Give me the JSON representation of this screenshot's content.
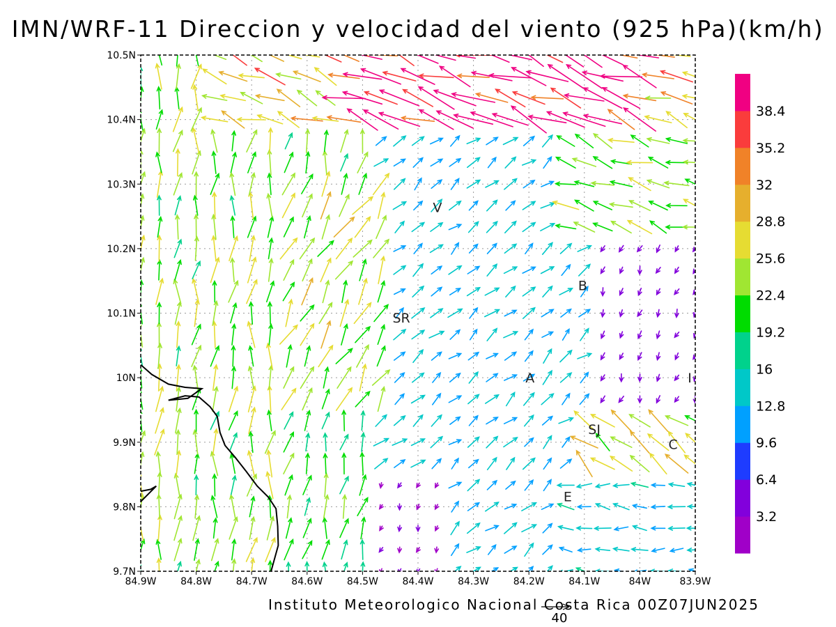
{
  "title": "IMN/WRF-11 Direccion y velocidad del viento (925 hPa)(km/h)",
  "footer": "Instituto Meteorologico Nacional Costa Rica 00Z07JUN2025",
  "reference_vector_label": "40",
  "map": {
    "lon_range": [
      -84.9,
      -83.9
    ],
    "lat_range": [
      9.7,
      10.5
    ],
    "lon_ticks": [
      {
        "value": -84.9,
        "label": "84.9W"
      },
      {
        "value": -84.8,
        "label": "84.8W"
      },
      {
        "value": -84.7,
        "label": "84.7W"
      },
      {
        "value": -84.6,
        "label": "84.6W"
      },
      {
        "value": -84.5,
        "label": "84.5W"
      },
      {
        "value": -84.4,
        "label": "84.4W"
      },
      {
        "value": -84.3,
        "label": "84.3W"
      },
      {
        "value": -84.2,
        "label": "84.2W"
      },
      {
        "value": -84.1,
        "label": "84.1W"
      },
      {
        "value": -84.0,
        "label": "84W"
      },
      {
        "value": -83.9,
        "label": "83.9W"
      }
    ],
    "lat_ticks": [
      {
        "value": 9.7,
        "label": "9.7N"
      },
      {
        "value": 9.8,
        "label": "9.8N"
      },
      {
        "value": 9.9,
        "label": "9.9N"
      },
      {
        "value": 10.0,
        "label": "10N"
      },
      {
        "value": 10.1,
        "label": "10.1N"
      },
      {
        "value": 10.2,
        "label": "10.2N"
      },
      {
        "value": 10.3,
        "label": "10.3N"
      },
      {
        "value": 10.4,
        "label": "10.4N"
      },
      {
        "value": 10.5,
        "label": "10.5N"
      }
    ],
    "grid": true,
    "coastline": [
      [
        [
          -84.9,
          10.02
        ],
        [
          -84.88,
          10.005
        ],
        [
          -84.85,
          9.99
        ],
        [
          -84.82,
          9.985
        ],
        [
          -84.79,
          9.983
        ],
        [
          -84.815,
          9.968
        ],
        [
          -84.85,
          9.965
        ],
        [
          -84.82,
          9.972
        ],
        [
          -84.795,
          9.97
        ],
        [
          -84.775,
          9.955
        ],
        [
          -84.762,
          9.94
        ],
        [
          -84.757,
          9.915
        ],
        [
          -84.748,
          9.895
        ],
        [
          -84.73,
          9.877
        ],
        [
          -84.71,
          9.855
        ],
        [
          -84.69,
          9.832
        ],
        [
          -84.67,
          9.815
        ],
        [
          -84.656,
          9.797
        ],
        [
          -84.653,
          9.77
        ],
        [
          -84.652,
          9.74
        ],
        [
          -84.665,
          9.7
        ]
      ],
      [
        [
          -84.9,
          9.824
        ],
        [
          -84.882,
          9.827
        ],
        [
          -84.872,
          9.832
        ],
        [
          -84.9,
          9.808
        ]
      ]
    ],
    "places": [
      {
        "label": "V",
        "lon": -84.365,
        "lat": 10.264
      },
      {
        "label": "SR",
        "lon": -84.43,
        "lat": 10.093
      },
      {
        "label": "B",
        "lon": -84.103,
        "lat": 10.143
      },
      {
        "label": "A",
        "lon": -84.198,
        "lat": 10.0
      },
      {
        "label": "I",
        "lon": -83.91,
        "lat": 10.0
      },
      {
        "label": "SJ",
        "lon": -84.082,
        "lat": 9.92
      },
      {
        "label": "C",
        "lon": -83.94,
        "lat": 9.897
      },
      {
        "label": "E",
        "lon": -84.13,
        "lat": 9.816
      }
    ]
  },
  "colorbar": {
    "colors": [
      "#a000c8",
      "#8200dc",
      "#1e3cff",
      "#00a0ff",
      "#00c8c8",
      "#00d28c",
      "#00dc00",
      "#a0e632",
      "#e6dc32",
      "#e6af2d",
      "#f08228",
      "#fa3c3c",
      "#f00082"
    ],
    "labels": [
      "3.2",
      "6.4",
      "9.6",
      "12.8",
      "16",
      "19.2",
      "22.4",
      "25.6",
      "28.8",
      "32",
      "35.2",
      "38.4"
    ]
  },
  "chart_data": {
    "type": "vector-field",
    "variable": "wind direction and speed at 925 hPa",
    "units": "km/h",
    "grid": {
      "lon_start": -84.9,
      "lon_step": 0.033,
      "cols": 31,
      "lat_start": 9.7,
      "lat_step": 0.033,
      "rows": 25
    },
    "regions": [
      {
        "region": "western lowlands (84.9W-84.62W)",
        "direction_deg_from_north": 5,
        "speed_kmh": 23
      },
      {
        "region": "north-central plains (84.6W-84.48W, 10.0N-10.3N)",
        "direction_deg_from_north": 30,
        "speed_kmh": 25
      },
      {
        "region": "northern strip (10.35N-10.5N, 84.75W-83.9W)",
        "direction_deg_from_north": 290,
        "speed_kmh": 36
      },
      {
        "region": "central valley (84.4W-84.15W, 9.75N-10.15N)",
        "direction_deg_from_north": 50,
        "speed_kmh": 13
      },
      {
        "region": "northeast (84.15W-83.9W, 10.2N-10.35N)",
        "direction_deg_from_north": 290,
        "speed_kmh": 24
      },
      {
        "region": "east near C / SJ (84.1W-83.9W, 9.85N-9.95N)",
        "direction_deg_from_north": 310,
        "speed_kmh": 27
      },
      {
        "region": "south-east (84.15W-83.9W, 9.7N-9.85N)",
        "direction_deg_from_north": 275,
        "speed_kmh": 14
      },
      {
        "region": "calm pockets (e.g. near 84.45W 9.8N, 84.0W 10.1N)",
        "direction_deg_from_north": 200,
        "speed_kmh": 3
      }
    ]
  }
}
